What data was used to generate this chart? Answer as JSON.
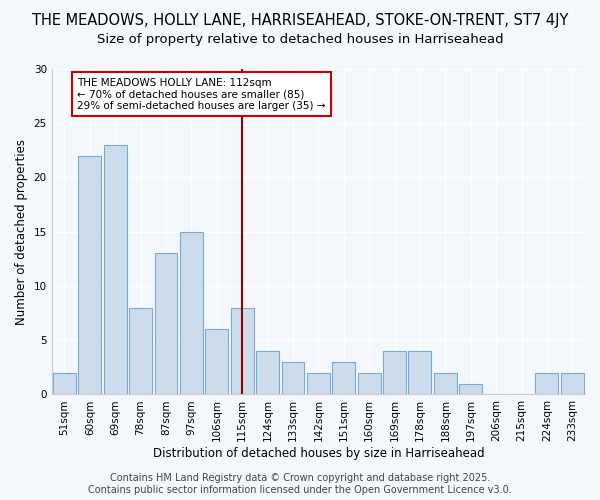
{
  "title": "THE MEADOWS, HOLLY LANE, HARRISEAHEAD, STOKE-ON-TRENT, ST7 4JY",
  "subtitle": "Size of property relative to detached houses in Harriseahead",
  "xlabel": "Distribution of detached houses by size in Harriseahead",
  "ylabel": "Number of detached properties",
  "categories": [
    "51sqm",
    "60sqm",
    "69sqm",
    "78sqm",
    "87sqm",
    "97sqm",
    "106sqm",
    "115sqm",
    "124sqm",
    "133sqm",
    "142sqm",
    "151sqm",
    "160sqm",
    "169sqm",
    "178sqm",
    "188sqm",
    "197sqm",
    "206sqm",
    "215sqm",
    "224sqm",
    "233sqm"
  ],
  "values": [
    2,
    22,
    23,
    8,
    13,
    15,
    6,
    8,
    4,
    3,
    2,
    3,
    2,
    4,
    4,
    2,
    1,
    0,
    0,
    2,
    2
  ],
  "bar_color": "#ccdcec",
  "bar_edge_color": "#7aaace",
  "vline_x_index": 7,
  "vline_color": "#990000",
  "annotation_text": "THE MEADOWS HOLLY LANE: 112sqm\n← 70% of detached houses are smaller (85)\n29% of semi-detached houses are larger (35) →",
  "annotation_box_color": "#ffffff",
  "annotation_box_edge": "#cc0000",
  "ylim": [
    0,
    30
  ],
  "yticks": [
    0,
    5,
    10,
    15,
    20,
    25,
    30
  ],
  "footer": "Contains HM Land Registry data © Crown copyright and database right 2025.\nContains public sector information licensed under the Open Government Licence v3.0.",
  "bg_color": "#f4f8fc",
  "plot_bg_color": "#f4f8fc",
  "title_fontsize": 10.5,
  "subtitle_fontsize": 9.5,
  "axis_label_fontsize": 8.5,
  "tick_fontsize": 7.5,
  "annotation_fontsize": 7.5,
  "footer_fontsize": 7
}
